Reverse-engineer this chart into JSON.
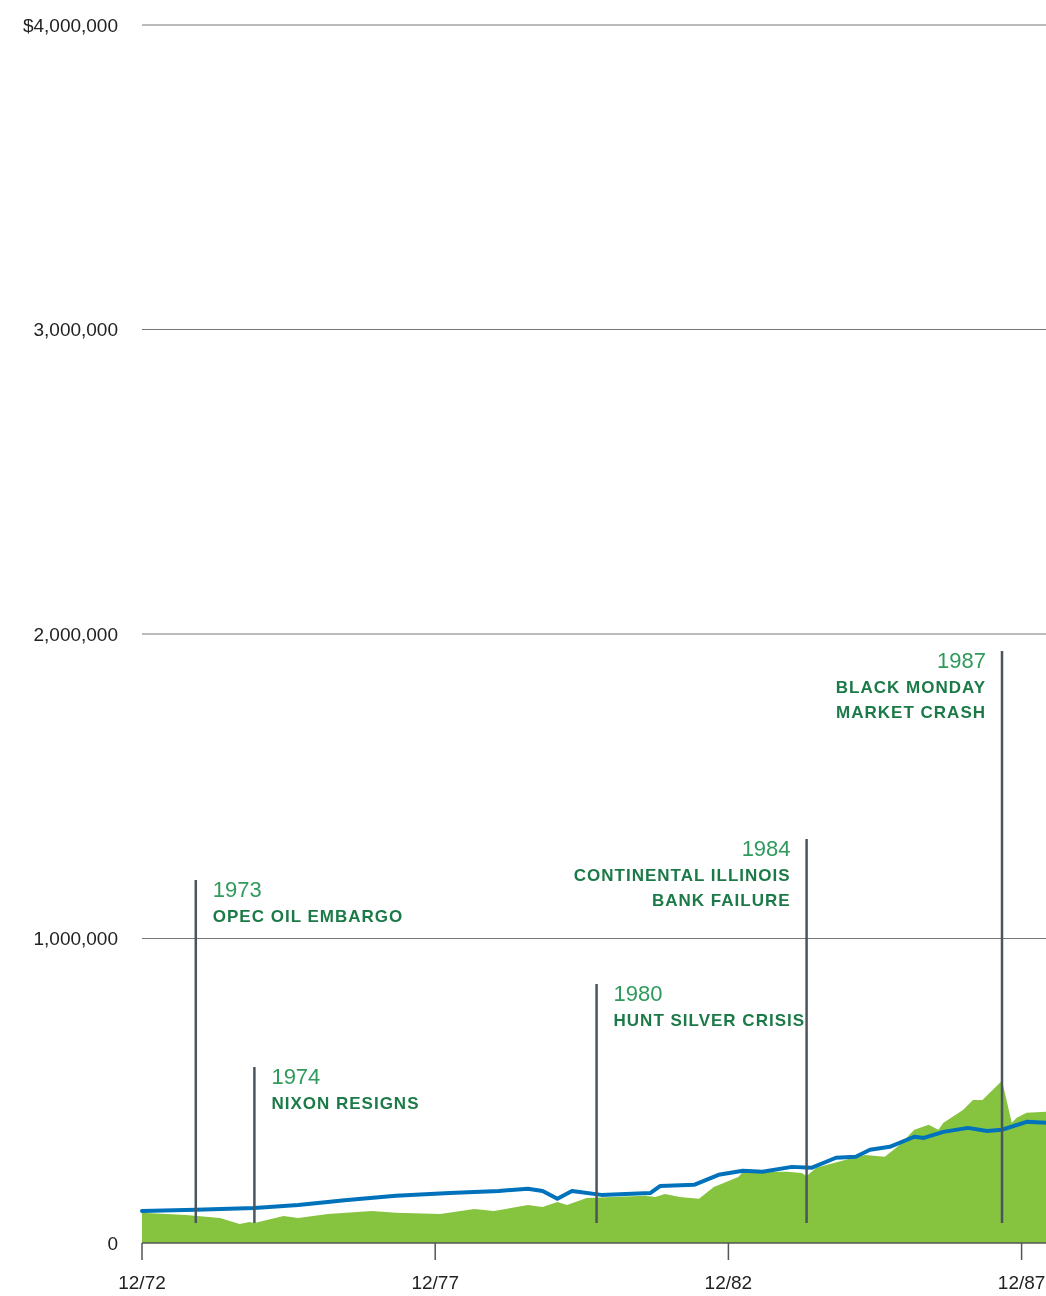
{
  "chart_data": {
    "type": "line",
    "xlim": [
      "1972-12",
      "1988-05"
    ],
    "xticks": [
      {
        "value": "1972-12",
        "label": "12/72"
      },
      {
        "value": "1977-12",
        "label": "12/77"
      },
      {
        "value": "1982-12",
        "label": "12/82"
      },
      {
        "value": "1987-12",
        "label": "12/87"
      }
    ],
    "ylim": [
      0,
      4000000
    ],
    "yticks": [
      0,
      {
        "value": 1000000,
        "label": "1,000,000"
      },
      {
        "value": 2000000,
        "label": "2,000,000"
      },
      {
        "value": 3000000,
        "label": "3,000,000"
      },
      {
        "value": 4000000,
        "label": "$4,000,000"
      }
    ],
    "grid": "y",
    "series": [
      {
        "type": "area",
        "color": "#86c440",
        "x": [
          "1972-12",
          "1973-09",
          "1974-04",
          "1974-08",
          "1974-10",
          "1974-11",
          "1975-05",
          "1975-08",
          "1976-02",
          "1976-11",
          "1977-04",
          "1978-01",
          "1978-08",
          "1978-12",
          "1979-07",
          "1979-10",
          "1980-01",
          "1980-03",
          "1980-07",
          "1981-07",
          "1981-09",
          "1981-11",
          "1982-02",
          "1982-06",
          "1982-09",
          "1983-02",
          "1983-03",
          "1983-12",
          "1984-03",
          "1984-04",
          "1984-06",
          "1984-12",
          "1985-04",
          "1985-08",
          "1985-11",
          "1986-02",
          "1986-05",
          "1986-07",
          "1986-08",
          "1986-12",
          "1987-02",
          "1987-04",
          "1987-08",
          "1987-10",
          "1987-11",
          "1988-01",
          "1988-05"
        ],
        "values": [
          99000,
          92000,
          82000,
          62000,
          69000,
          66000,
          89000,
          82000,
          95000,
          105000,
          99000,
          95000,
          112000,
          105000,
          125000,
          118000,
          135000,
          125000,
          148000,
          155000,
          151000,
          161000,
          151000,
          145000,
          184000,
          217000,
          234000,
          234000,
          230000,
          220000,
          247000,
          273000,
          289000,
          283000,
          322000,
          372000,
          388000,
          372000,
          395000,
          437000,
          470000,
          470000,
          533000,
          395000,
          411000,
          428000,
          431000
        ]
      },
      {
        "color": "#0072bc",
        "x": [
          "1972-12",
          "1973-11",
          "1974-11",
          "1975-08",
          "1976-06",
          "1977-04",
          "1978-03",
          "1979-01",
          "1979-07",
          "1979-10",
          "1980-01",
          "1980-04",
          "1980-10",
          "1981-08",
          "1981-10",
          "1982-05",
          "1982-10",
          "1983-03",
          "1983-07",
          "1984-01",
          "1984-05",
          "1984-10",
          "1985-02",
          "1985-05",
          "1985-09",
          "1986-02",
          "1986-04",
          "1986-08",
          "1987-01",
          "1987-05",
          "1987-08",
          "1987-10",
          "1988-01",
          "1988-05"
        ],
        "values": [
          105000,
          109000,
          115000,
          125000,
          141000,
          155000,
          164000,
          171000,
          178000,
          171000,
          145000,
          171000,
          158000,
          164000,
          187000,
          191000,
          224000,
          237000,
          234000,
          250000,
          247000,
          280000,
          283000,
          306000,
          316000,
          349000,
          345000,
          365000,
          378000,
          368000,
          372000,
          382000,
          398000,
          395000
        ]
      }
    ],
    "ref_lines": [
      {
        "axis": "x",
        "value": "1973-11",
        "label": "1973\nOPEC OIL EMBARGO"
      },
      {
        "axis": "x",
        "value": "1974-11",
        "label": "1974\nNIXON RESIGNS"
      },
      {
        "axis": "x",
        "value": "1980-09",
        "label": "1980\nHUNT SILVER CRISIS"
      },
      {
        "axis": "x",
        "value": "1984-04",
        "label": "1984\nCONTINENTAL ILLINOIS\nBANK FAILURE"
      },
      {
        "axis": "x",
        "value": "1987-08",
        "label": "1987\nBLACK MONDAY\nMARKET CRASH"
      }
    ]
  }
}
